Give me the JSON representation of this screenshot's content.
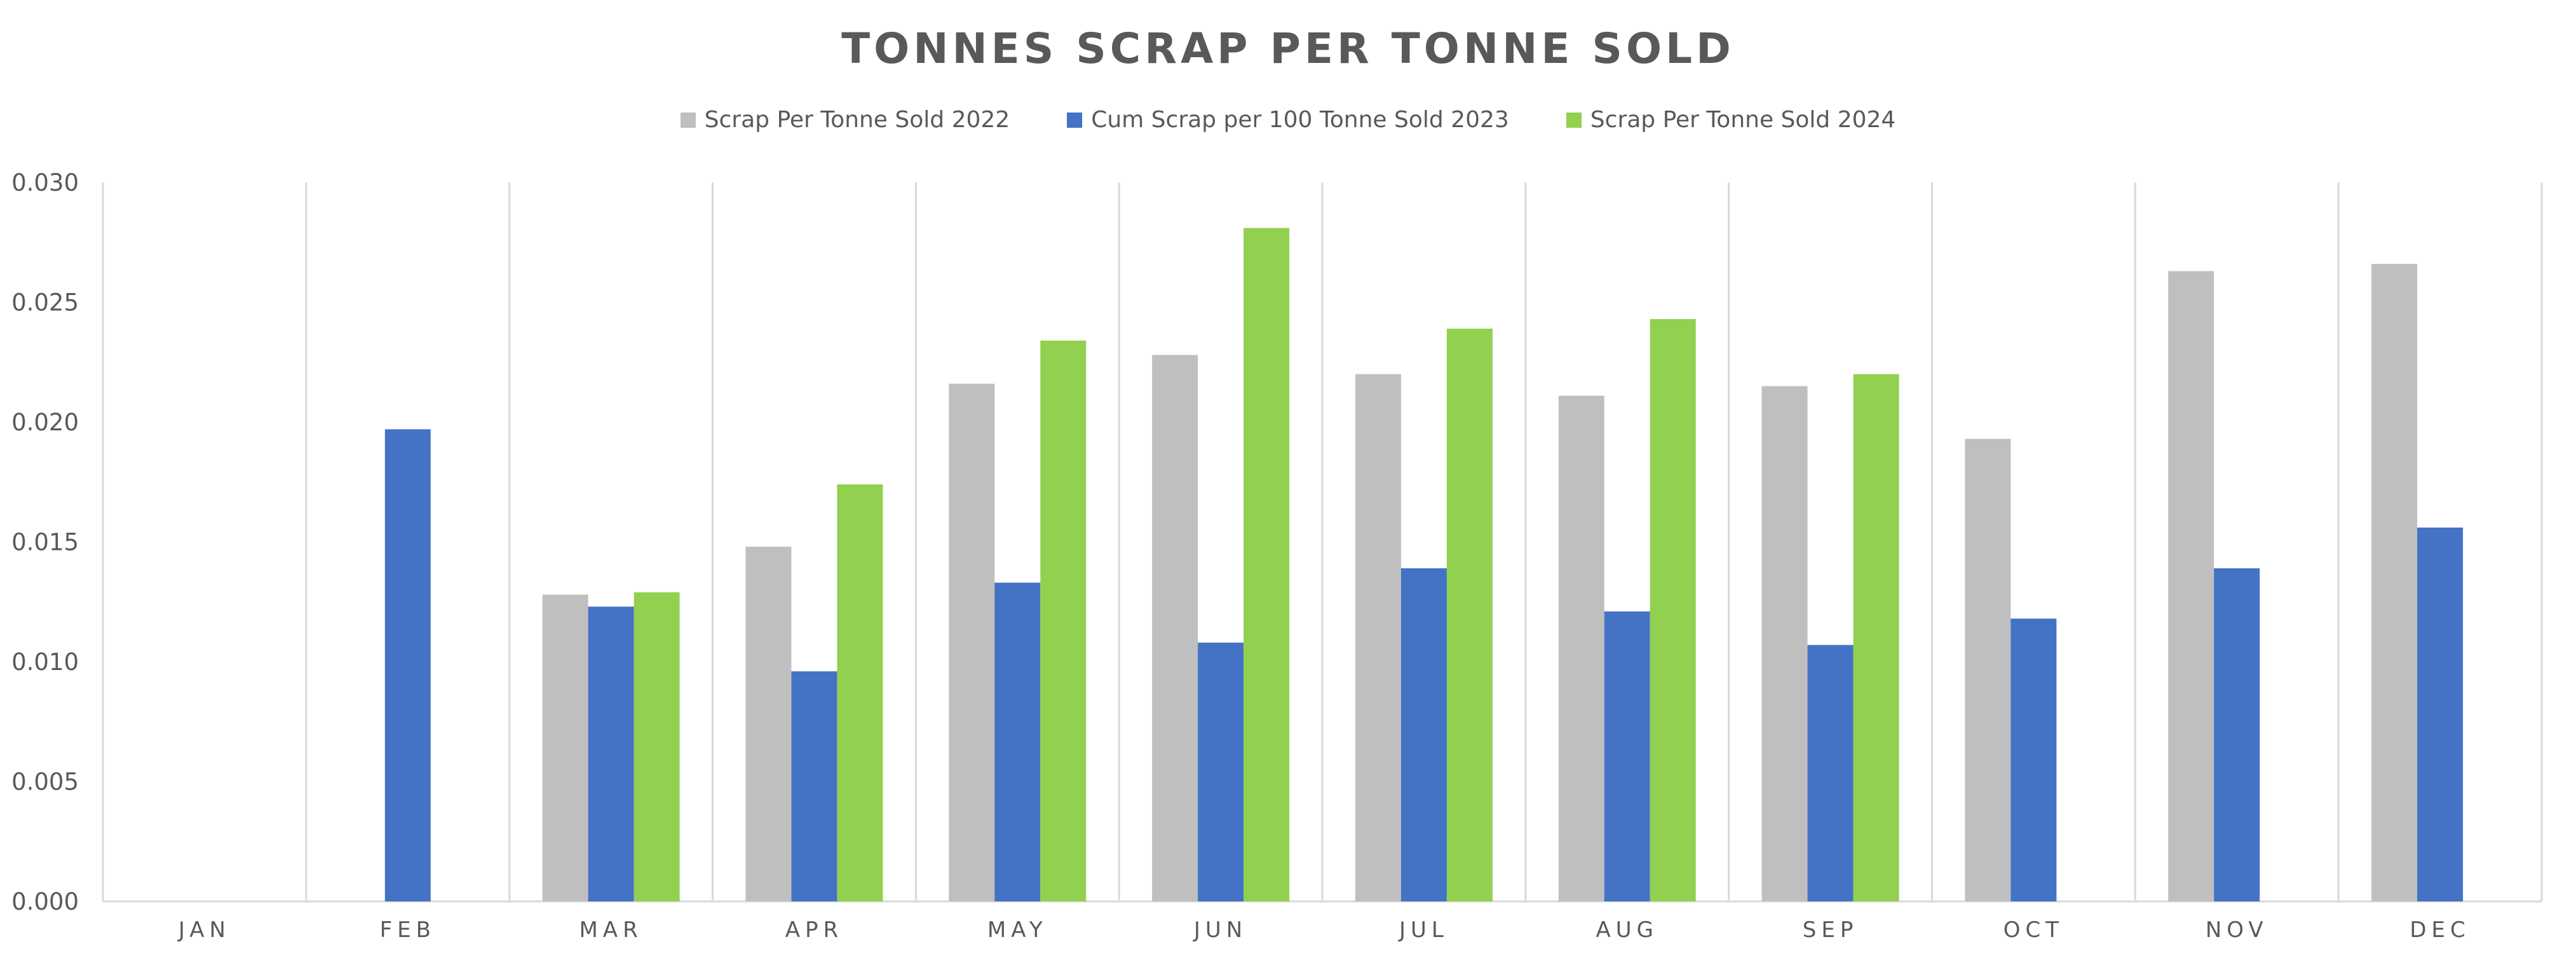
{
  "chart_data": {
    "type": "bar",
    "title": "TONNES SCRAP PER TONNE SOLD",
    "xlabel": "",
    "ylabel": "",
    "categories": [
      "JAN",
      "FEB",
      "MAR",
      "APR",
      "MAY",
      "JUN",
      "JUL",
      "AUG",
      "SEP",
      "OCT",
      "NOV",
      "DEC"
    ],
    "ylim": [
      0,
      0.03
    ],
    "yticks": [
      "0.000",
      "0.005",
      "0.010",
      "0.015",
      "0.020",
      "0.025",
      "0.030"
    ],
    "legend_position": "top-center",
    "grid": "vertical category separators",
    "series": [
      {
        "name": "Scrap Per Tonne Sold 2022",
        "color": "#BFBFBF",
        "values": [
          null,
          null,
          0.0128,
          0.0148,
          0.0216,
          0.0228,
          0.022,
          0.0211,
          0.0215,
          0.0193,
          0.0263,
          0.0266
        ]
      },
      {
        "name": "Cum Scrap per 100 Tonne Sold 2023",
        "color": "#4472C4",
        "values": [
          null,
          0.0197,
          0.0123,
          0.0096,
          0.0133,
          0.0108,
          0.0139,
          0.0121,
          0.0107,
          0.0118,
          0.0139,
          0.0156
        ]
      },
      {
        "name": "Scrap Per Tonne Sold 2024",
        "color": "#92D050",
        "values": [
          null,
          null,
          0.0129,
          0.0174,
          0.0234,
          0.0281,
          0.0239,
          0.0243,
          0.022,
          null,
          null,
          null
        ]
      }
    ]
  }
}
